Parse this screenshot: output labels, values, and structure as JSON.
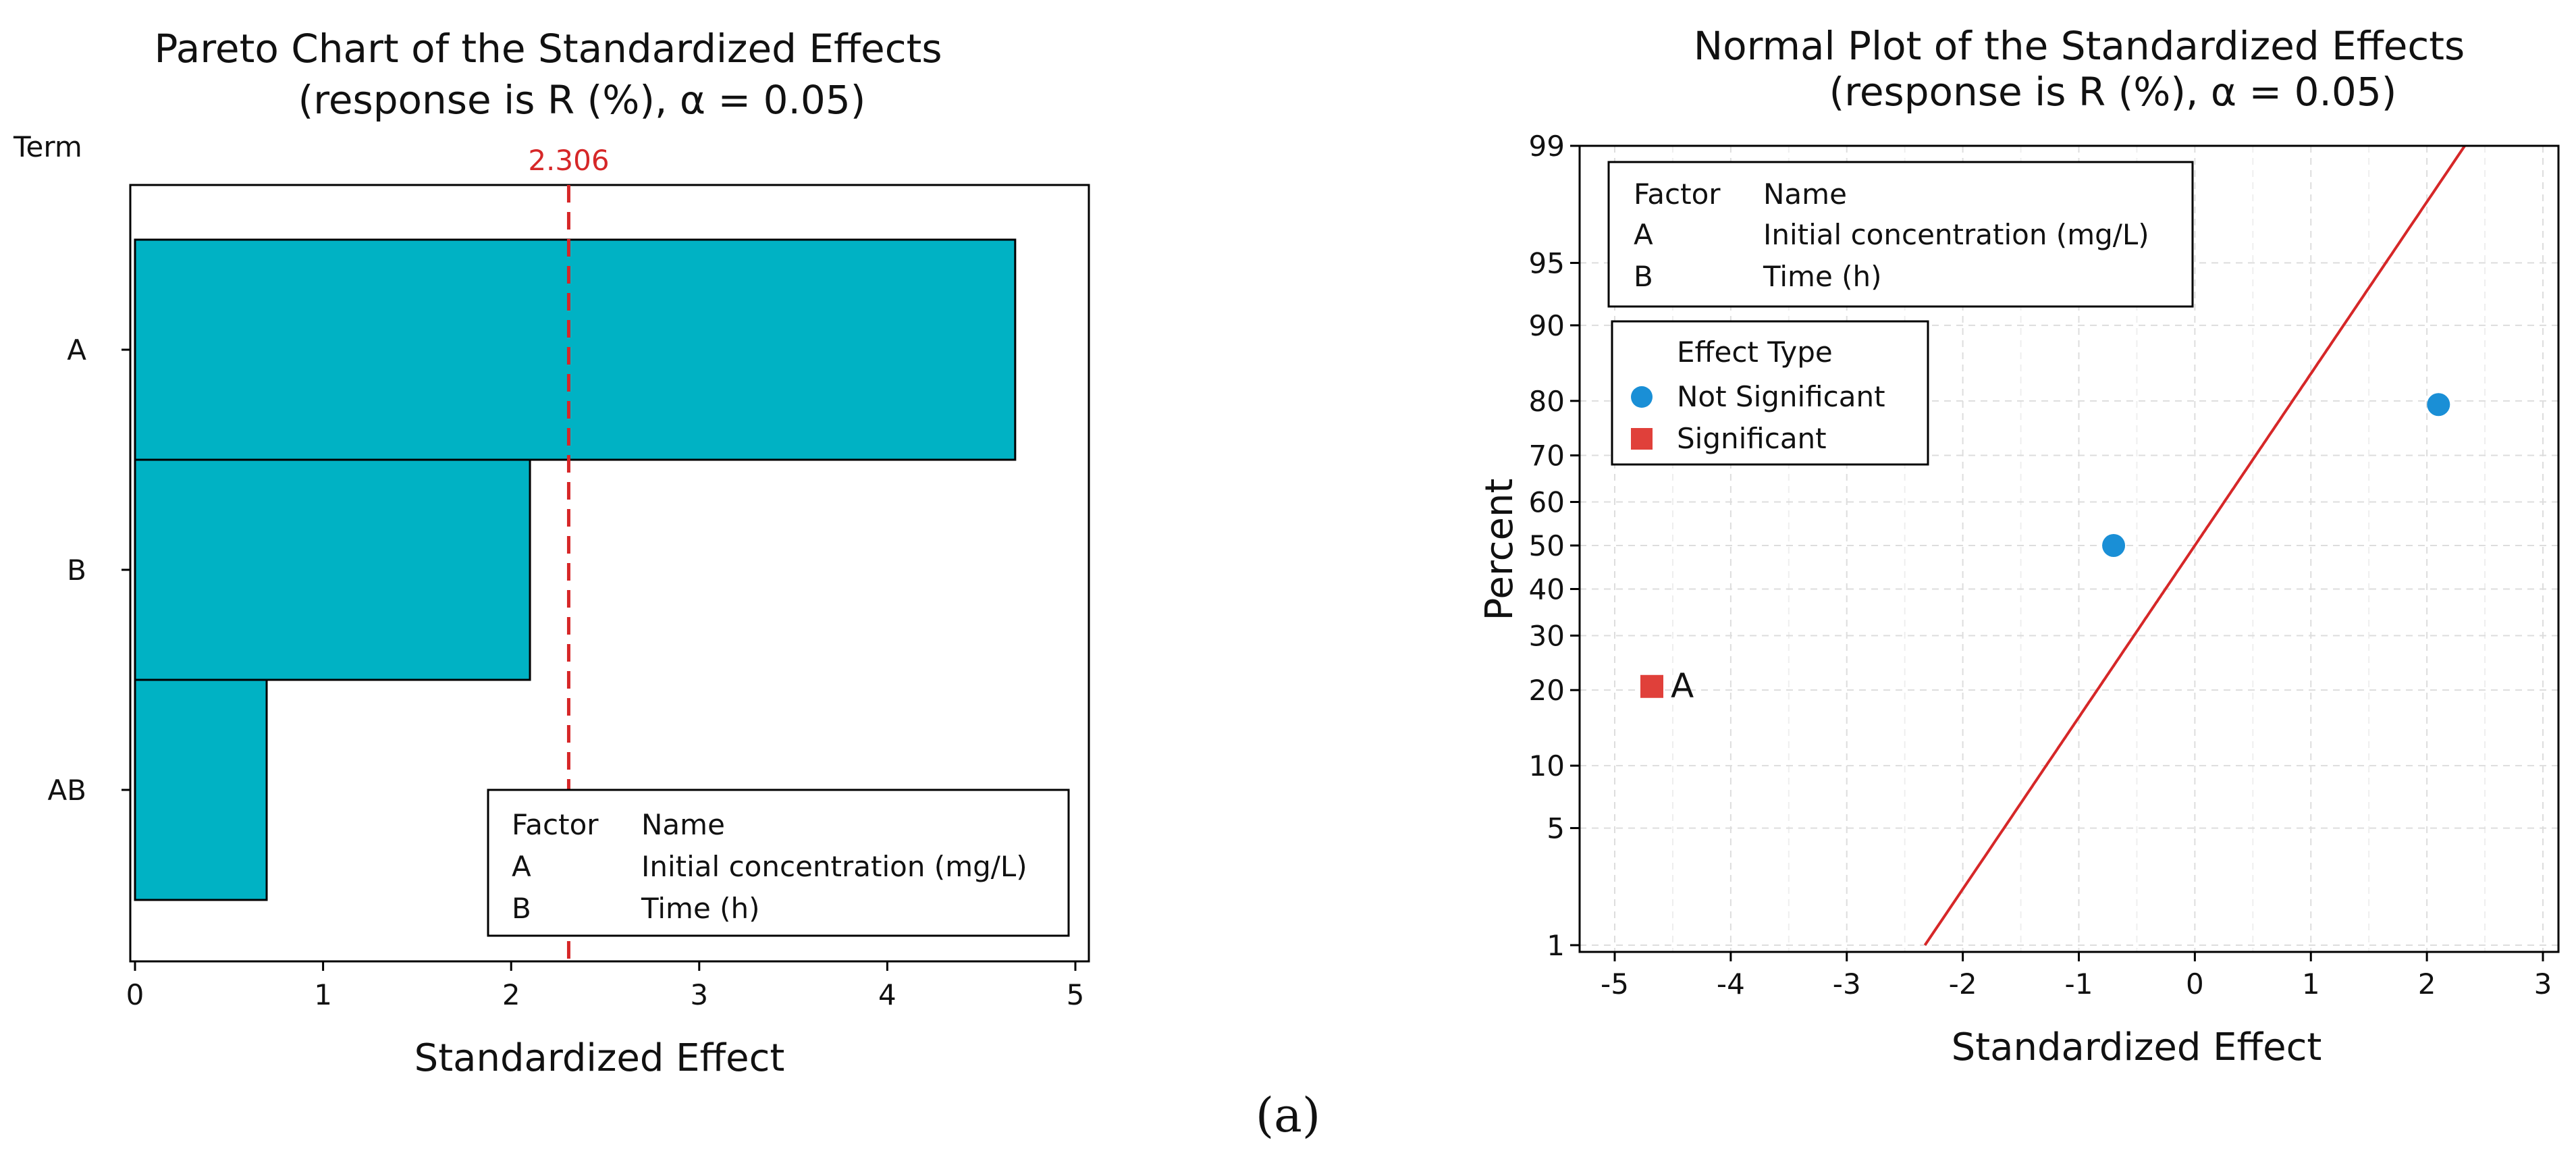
{
  "caption": "(a)",
  "legend_factors": {
    "header_factor": "Factor",
    "header_name": "Name",
    "rows": [
      {
        "factor": "A",
        "name": "Initial concentration (mg/L)"
      },
      {
        "factor": "B",
        "name": "Time (h)"
      }
    ]
  },
  "colors": {
    "bar": "#00B2C4",
    "refline": "#D62728",
    "not_significant": "#1A8FD6",
    "significant": "#E0403A"
  },
  "chart_data": [
    {
      "type": "bar",
      "orientation": "horizontal",
      "title": "Pareto Chart of the Standardized Effects",
      "subtitle": "(response is R (%), α = 0.05)",
      "ylabel": "Term",
      "xlabel": "Standardized Effect",
      "categories": [
        "A",
        "B",
        "AB"
      ],
      "values": [
        4.68,
        2.1,
        0.7
      ],
      "xlim": [
        0,
        5
      ],
      "xticks": [
        0,
        1,
        2,
        3,
        4,
        5
      ],
      "reference_line": {
        "value": 2.306,
        "label": "2.306"
      },
      "legend_position": "bottom-right"
    },
    {
      "type": "scatter",
      "title": "Normal Plot of the Standardized Effects",
      "subtitle": "(response is R (%), α = 0.05)",
      "xlabel": "Standardized Effect",
      "ylabel": "Percent",
      "xlim": [
        -5,
        3
      ],
      "xticks": [
        -5,
        -4,
        -3,
        -2,
        -1,
        0,
        1,
        2,
        3
      ],
      "yticks": [
        1,
        5,
        10,
        20,
        30,
        40,
        50,
        60,
        70,
        80,
        90,
        95,
        99
      ],
      "ylim": [
        1,
        99
      ],
      "grid": true,
      "effect_type_title": "Effect Type",
      "effect_types": [
        {
          "label": "Not Significant",
          "marker": "circle"
        },
        {
          "label": "Significant",
          "marker": "square"
        }
      ],
      "points": [
        {
          "x": -4.68,
          "y": 20.6,
          "label": "A",
          "type": "Significant"
        },
        {
          "x": -0.7,
          "y": 50,
          "label": "",
          "type": "Not Significant"
        },
        {
          "x": 2.1,
          "y": 79.4,
          "label": "",
          "type": "Not Significant"
        }
      ],
      "fit_line": {
        "mean": 0,
        "sd": 1.0
      },
      "legend_position": "top-left"
    }
  ]
}
